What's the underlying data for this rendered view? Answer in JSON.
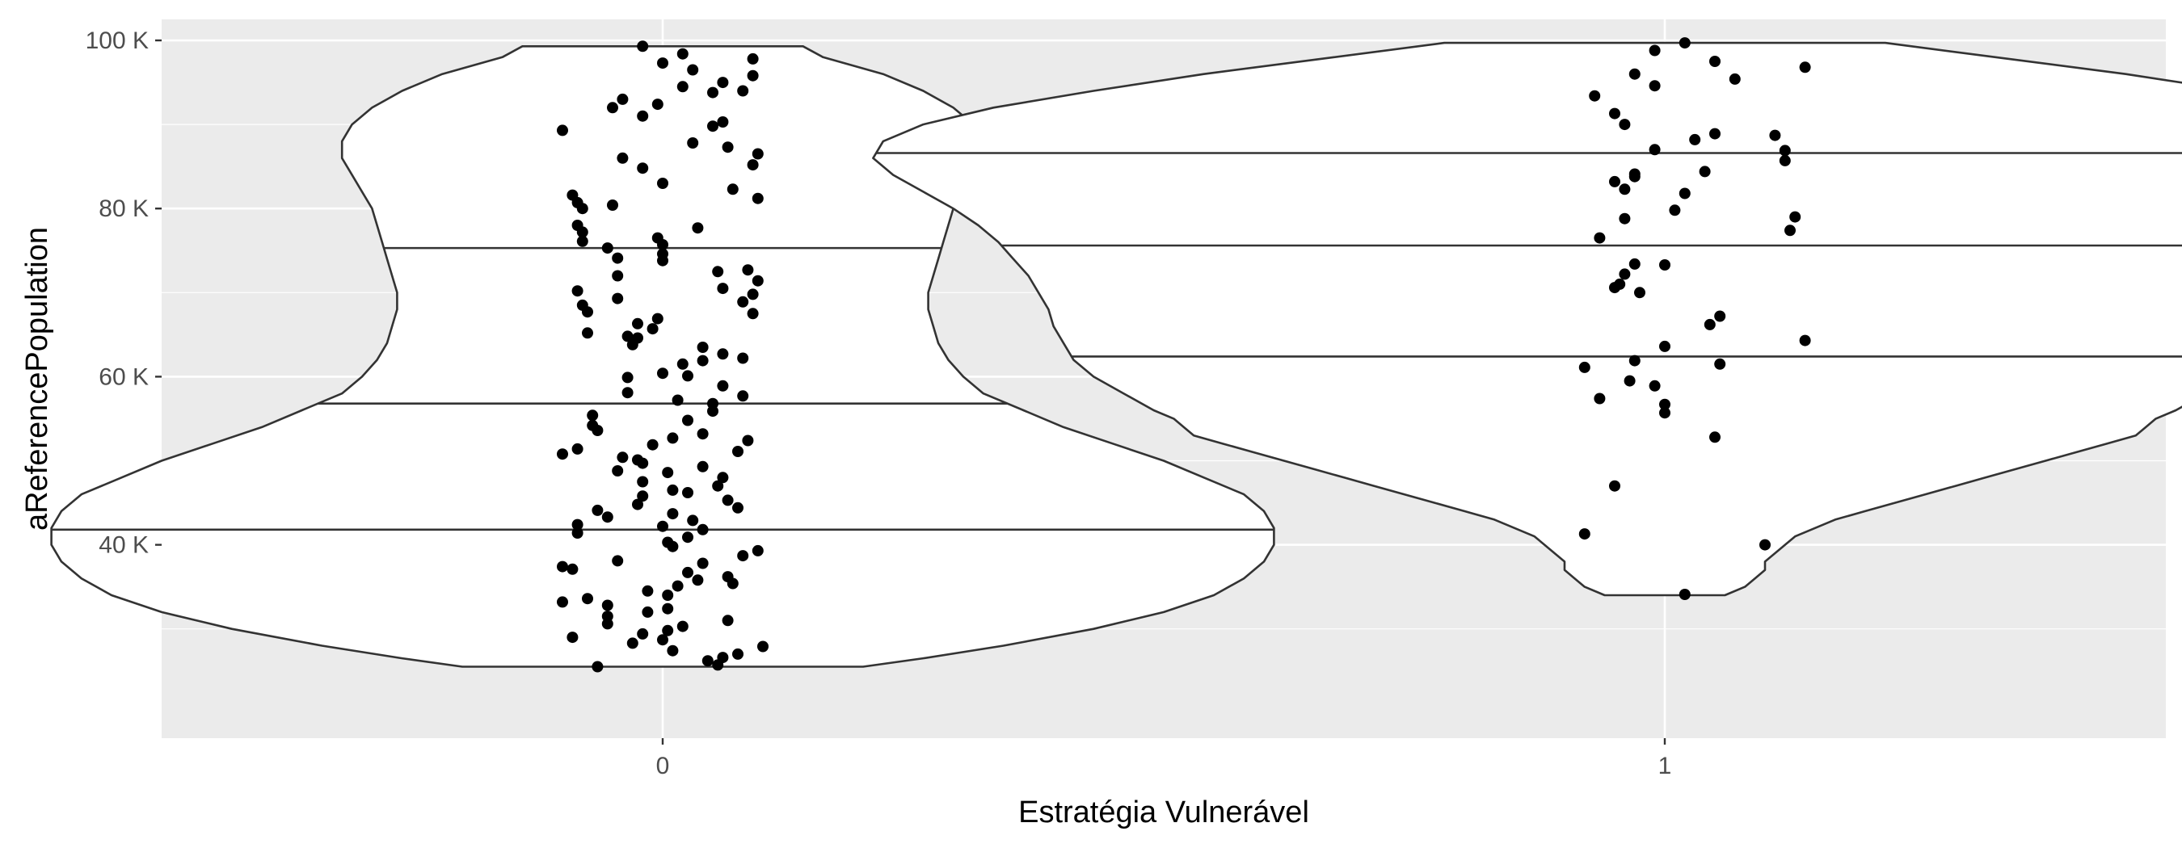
{
  "chart_data": {
    "type": "violin",
    "xlabel": "Estratégia Vulnerável",
    "ylabel": "aReferencePopulation",
    "ylim": [
      17000,
      102500
    ],
    "y_ticks": [
      {
        "value": 40000,
        "label": "40 K"
      },
      {
        "value": 60000,
        "label": "60 K"
      },
      {
        "value": 80000,
        "label": "80 K"
      },
      {
        "value": 100000,
        "label": "100 K"
      }
    ],
    "categories": [
      "0",
      "1"
    ],
    "grid": true,
    "colors": {
      "panel": "#ebebeb",
      "grid": "#ffffff",
      "violin_fill": "#ffffff",
      "violin_stroke": "#333333",
      "point": "#000000",
      "tick_text": "#4d4d4d",
      "title_text": "#000000"
    },
    "violins": [
      {
        "category": "0",
        "quantiles": [
          41800,
          56800,
          75300
        ],
        "profile": [
          [
            25500,
            0.2
          ],
          [
            26500,
            0.26
          ],
          [
            28000,
            0.34
          ],
          [
            30000,
            0.43
          ],
          [
            32000,
            0.5
          ],
          [
            34000,
            0.55
          ],
          [
            36000,
            0.58
          ],
          [
            38000,
            0.6
          ],
          [
            40000,
            0.61
          ],
          [
            42000,
            0.61
          ],
          [
            44000,
            0.6
          ],
          [
            46000,
            0.58
          ],
          [
            48000,
            0.54
          ],
          [
            50000,
            0.5
          ],
          [
            52000,
            0.45
          ],
          [
            54000,
            0.4
          ],
          [
            56000,
            0.36
          ],
          [
            58000,
            0.32
          ],
          [
            60000,
            0.3
          ],
          [
            62000,
            0.285
          ],
          [
            64000,
            0.275
          ],
          [
            66000,
            0.27
          ],
          [
            68000,
            0.265
          ],
          [
            70000,
            0.265
          ],
          [
            72000,
            0.27
          ],
          [
            74000,
            0.275
          ],
          [
            76000,
            0.28
          ],
          [
            78000,
            0.285
          ],
          [
            80000,
            0.29
          ],
          [
            82000,
            0.3
          ],
          [
            84000,
            0.31
          ],
          [
            86000,
            0.32
          ],
          [
            88000,
            0.32
          ],
          [
            90000,
            0.31
          ],
          [
            92000,
            0.29
          ],
          [
            94000,
            0.26
          ],
          [
            96000,
            0.22
          ],
          [
            98000,
            0.16
          ],
          [
            99300,
            0.14
          ]
        ],
        "points": [
          [
            99300,
            -0.02
          ],
          [
            98400,
            0.02
          ],
          [
            97800,
            0.09
          ],
          [
            97300,
            0.0
          ],
          [
            96500,
            0.03
          ],
          [
            95800,
            0.09
          ],
          [
            95000,
            0.06
          ],
          [
            94500,
            0.02
          ],
          [
            94000,
            0.08
          ],
          [
            93800,
            0.05
          ],
          [
            93000,
            -0.04
          ],
          [
            92400,
            -0.005
          ],
          [
            92000,
            -0.05
          ],
          [
            91000,
            -0.02
          ],
          [
            90300,
            0.06
          ],
          [
            89800,
            0.05
          ],
          [
            89300,
            -0.1
          ],
          [
            87800,
            0.03
          ],
          [
            87300,
            0.065
          ],
          [
            86500,
            0.095
          ],
          [
            86000,
            -0.04
          ],
          [
            85200,
            0.09
          ],
          [
            84800,
            -0.02
          ],
          [
            83000,
            0.0
          ],
          [
            82300,
            0.07
          ],
          [
            81600,
            -0.09
          ],
          [
            81200,
            0.095
          ],
          [
            80700,
            -0.085
          ],
          [
            80400,
            -0.05
          ],
          [
            80000,
            -0.08
          ],
          [
            78000,
            -0.085
          ],
          [
            77700,
            0.035
          ],
          [
            77200,
            -0.08
          ],
          [
            76500,
            -0.005
          ],
          [
            76100,
            -0.08
          ],
          [
            75700,
            0.0
          ],
          [
            75300,
            -0.055
          ],
          [
            74600,
            0.0
          ],
          [
            74100,
            -0.045
          ],
          [
            73800,
            0.0
          ],
          [
            72700,
            0.085
          ],
          [
            72500,
            0.055
          ],
          [
            72000,
            -0.045
          ],
          [
            71400,
            0.095
          ],
          [
            70500,
            0.06
          ],
          [
            70200,
            -0.085
          ],
          [
            69800,
            0.09
          ],
          [
            69300,
            -0.045
          ],
          [
            68900,
            0.08
          ],
          [
            68500,
            -0.08
          ],
          [
            67700,
            -0.075
          ],
          [
            67500,
            0.09
          ],
          [
            66900,
            -0.005
          ],
          [
            66300,
            -0.025
          ],
          [
            65700,
            -0.01
          ],
          [
            65200,
            -0.075
          ],
          [
            64800,
            -0.035
          ],
          [
            64600,
            -0.025
          ],
          [
            63800,
            -0.03
          ],
          [
            63500,
            0.04
          ],
          [
            62700,
            0.06
          ],
          [
            62200,
            0.08
          ],
          [
            61900,
            0.04
          ],
          [
            61500,
            0.02
          ],
          [
            60400,
            0.0
          ],
          [
            60100,
            0.025
          ],
          [
            59900,
            -0.035
          ],
          [
            58900,
            0.06
          ],
          [
            58100,
            -0.035
          ],
          [
            57700,
            0.08
          ],
          [
            57200,
            0.015
          ],
          [
            56800,
            0.05
          ],
          [
            55900,
            0.05
          ],
          [
            55400,
            -0.07
          ],
          [
            54800,
            0.025
          ],
          [
            54200,
            -0.07
          ],
          [
            53600,
            -0.065
          ],
          [
            53200,
            0.04
          ],
          [
            52700,
            0.01
          ],
          [
            52400,
            0.085
          ],
          [
            51900,
            -0.01
          ],
          [
            51400,
            -0.085
          ],
          [
            51100,
            0.075
          ],
          [
            50800,
            -0.1
          ],
          [
            50400,
            -0.04
          ],
          [
            50100,
            -0.025
          ],
          [
            49700,
            -0.02
          ],
          [
            49300,
            0.04
          ],
          [
            48800,
            -0.045
          ],
          [
            48600,
            0.005
          ],
          [
            48000,
            0.06
          ],
          [
            47500,
            -0.02
          ],
          [
            47000,
            0.055
          ],
          [
            46500,
            0.01
          ],
          [
            46200,
            0.025
          ],
          [
            45800,
            -0.02
          ],
          [
            45300,
            0.065
          ],
          [
            44800,
            -0.025
          ],
          [
            44400,
            0.075
          ],
          [
            44100,
            -0.065
          ],
          [
            43700,
            0.01
          ],
          [
            43300,
            -0.055
          ],
          [
            42900,
            0.03
          ],
          [
            42400,
            -0.085
          ],
          [
            42200,
            0.0
          ],
          [
            41800,
            0.04
          ],
          [
            41400,
            -0.085
          ],
          [
            40900,
            0.025
          ],
          [
            40300,
            0.005
          ],
          [
            39800,
            0.01
          ],
          [
            39300,
            0.095
          ],
          [
            38700,
            0.08
          ],
          [
            38100,
            -0.045
          ],
          [
            37800,
            0.04
          ],
          [
            37400,
            -0.1
          ],
          [
            37100,
            -0.09
          ],
          [
            36700,
            0.025
          ],
          [
            36200,
            0.065
          ],
          [
            35800,
            0.035
          ],
          [
            35400,
            0.07
          ],
          [
            35100,
            0.015
          ],
          [
            34500,
            -0.015
          ],
          [
            34000,
            0.005
          ],
          [
            33600,
            -0.075
          ],
          [
            33200,
            -0.1
          ],
          [
            32800,
            -0.055
          ],
          [
            32400,
            0.005
          ],
          [
            32000,
            -0.015
          ],
          [
            31500,
            -0.055
          ],
          [
            31000,
            0.065
          ],
          [
            30600,
            -0.055
          ],
          [
            30300,
            0.02
          ],
          [
            29800,
            0.005
          ],
          [
            29400,
            -0.02
          ],
          [
            29000,
            -0.09
          ],
          [
            28700,
            0.0
          ],
          [
            28300,
            -0.03
          ],
          [
            27900,
            0.1
          ],
          [
            27400,
            0.01
          ],
          [
            27000,
            0.075
          ],
          [
            26600,
            0.06
          ],
          [
            26200,
            0.045
          ],
          [
            25700,
            0.055
          ],
          [
            25500,
            -0.065
          ]
        ]
      },
      {
        "category": "1",
        "quantiles": [
          62400,
          75600,
          86600
        ],
        "profile": [
          [
            34000,
            0.06
          ],
          [
            35000,
            0.08
          ],
          [
            36000,
            0.09
          ],
          [
            37000,
            0.1
          ],
          [
            38000,
            0.1
          ],
          [
            39000,
            0.11
          ],
          [
            40000,
            0.12
          ],
          [
            41000,
            0.13
          ],
          [
            42000,
            0.15
          ],
          [
            43000,
            0.17
          ],
          [
            44000,
            0.2
          ],
          [
            45000,
            0.23
          ],
          [
            46000,
            0.26
          ],
          [
            47000,
            0.29
          ],
          [
            48000,
            0.32
          ],
          [
            49000,
            0.35
          ],
          [
            50000,
            0.38
          ],
          [
            51000,
            0.41
          ],
          [
            52000,
            0.44
          ],
          [
            53000,
            0.47
          ],
          [
            54000,
            0.48
          ],
          [
            55000,
            0.49
          ],
          [
            56000,
            0.51
          ],
          [
            58000,
            0.54
          ],
          [
            60000,
            0.57
          ],
          [
            62000,
            0.59
          ],
          [
            64000,
            0.6
          ],
          [
            66000,
            0.61
          ],
          [
            68000,
            0.615
          ],
          [
            70000,
            0.625
          ],
          [
            72000,
            0.635
          ],
          [
            74000,
            0.65
          ],
          [
            76000,
            0.665
          ],
          [
            78000,
            0.685
          ],
          [
            80000,
            0.71
          ],
          [
            82000,
            0.74
          ],
          [
            84000,
            0.77
          ],
          [
            86000,
            0.79
          ],
          [
            88000,
            0.78
          ],
          [
            90000,
            0.74
          ],
          [
            92000,
            0.67
          ],
          [
            94000,
            0.57
          ],
          [
            96000,
            0.46
          ],
          [
            98000,
            0.33
          ],
          [
            99700,
            0.22
          ]
        ],
        "points": [
          [
            99700,
            0.02
          ],
          [
            98800,
            -0.01
          ],
          [
            97500,
            0.05
          ],
          [
            96800,
            0.14
          ],
          [
            96000,
            -0.03
          ],
          [
            95400,
            0.07
          ],
          [
            94600,
            -0.01
          ],
          [
            93400,
            -0.07
          ],
          [
            91300,
            -0.05
          ],
          [
            90000,
            -0.04
          ],
          [
            88900,
            0.05
          ],
          [
            88700,
            0.11
          ],
          [
            88200,
            0.03
          ],
          [
            87000,
            -0.01
          ],
          [
            86900,
            0.12
          ],
          [
            85700,
            0.12
          ],
          [
            84400,
            0.04
          ],
          [
            84100,
            -0.03
          ],
          [
            83800,
            -0.03
          ],
          [
            83200,
            -0.05
          ],
          [
            82300,
            -0.04
          ],
          [
            81800,
            0.02
          ],
          [
            79800,
            0.01
          ],
          [
            79000,
            0.13
          ],
          [
            78800,
            -0.04
          ],
          [
            77400,
            0.125
          ],
          [
            76500,
            -0.065
          ],
          [
            73400,
            -0.03
          ],
          [
            73300,
            0.0
          ],
          [
            72200,
            -0.04
          ],
          [
            71000,
            -0.045
          ],
          [
            70600,
            -0.05
          ],
          [
            70000,
            -0.025
          ],
          [
            67200,
            0.055
          ],
          [
            66200,
            0.045
          ],
          [
            64300,
            0.14
          ],
          [
            63600,
            0.0
          ],
          [
            61900,
            -0.03
          ],
          [
            61500,
            0.055
          ],
          [
            61100,
            -0.08
          ],
          [
            59500,
            -0.035
          ],
          [
            58900,
            -0.01
          ],
          [
            57400,
            -0.065
          ],
          [
            56700,
            0.0
          ],
          [
            55700,
            0.0
          ],
          [
            52800,
            0.05
          ],
          [
            47000,
            -0.05
          ],
          [
            41300,
            -0.08
          ],
          [
            40000,
            0.1
          ],
          [
            34100,
            0.02
          ]
        ]
      }
    ]
  }
}
